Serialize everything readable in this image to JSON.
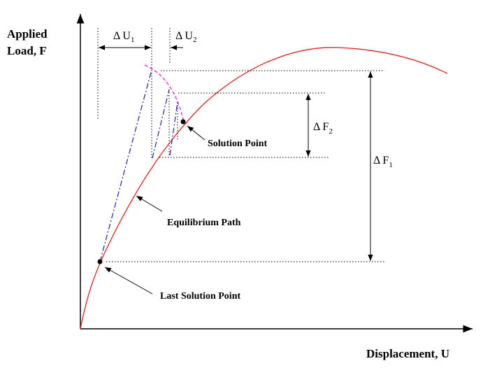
{
  "y_axis_label": [
    "Applied",
    "Load, F"
  ],
  "x_axis_label": "Displacement, U",
  "delta_u1": {
    "symbol": "Δ U",
    "subscript": "1"
  },
  "delta_u2": {
    "symbol": "Δ U",
    "subscript": "2"
  },
  "delta_f1": {
    "symbol": "Δ F",
    "subscript": "1"
  },
  "delta_f2": {
    "symbol": "Δ F",
    "subscript": "2"
  },
  "annotations": [
    "Solution Point",
    "Equilibrium Path",
    "Last Solution Point"
  ]
}
